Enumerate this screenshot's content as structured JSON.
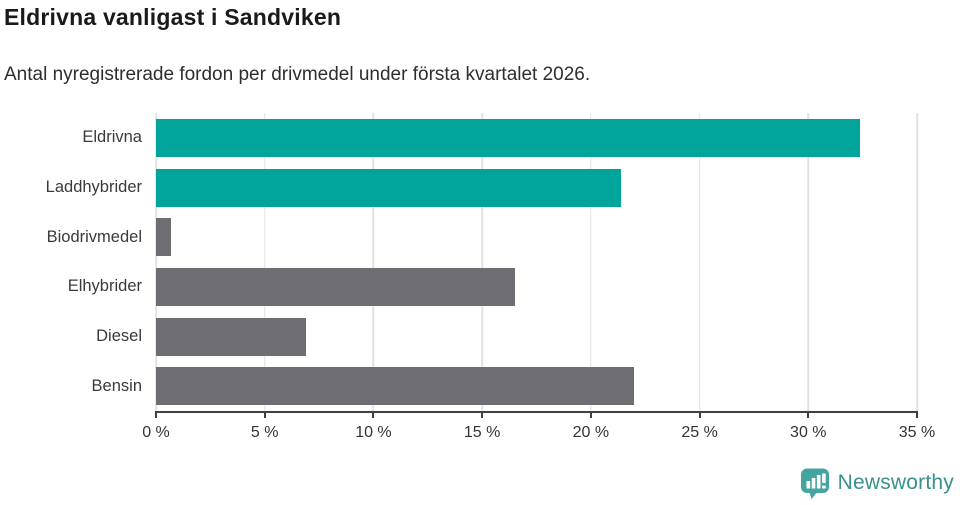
{
  "header": {
    "title": "Eldrivna vanligast i Sandviken",
    "subtitle": "Antal nyregistrerade fordon per drivmedel under första kvartalet 2026."
  },
  "chart_data": {
    "type": "bar",
    "orientation": "horizontal",
    "title": "Eldrivna vanligast i Sandviken",
    "subtitle": "Antal nyregistrerade fordon per drivmedel under första kvartalet 2026.",
    "categories": [
      "Eldrivna",
      "Laddhybrider",
      "Biodrivmedel",
      "Elhybrider",
      "Diesel",
      "Bensin"
    ],
    "values": [
      32.4,
      21.4,
      0.7,
      16.5,
      6.9,
      22.0
    ],
    "unit": "%",
    "xlim": [
      0,
      35
    ],
    "x_tick_values": [
      0,
      5,
      10,
      15,
      20,
      25,
      30,
      35
    ],
    "x_tick_labels": [
      "0 %",
      "5 %",
      "10 %",
      "15 %",
      "20 %",
      "25 %",
      "30 %",
      "35 %"
    ],
    "grid": true,
    "legend": "none",
    "bar_colors": [
      "#00a49b",
      "#00a49b",
      "#6e6e72",
      "#6e6e72",
      "#6e6e72",
      "#6e6e72"
    ],
    "colors": {
      "highlight": "#00a49b",
      "default": "#6e6e72",
      "gridline": "#e2e2e2",
      "axis": "#3f3f3f",
      "text": "#3a3a3a"
    }
  },
  "footer": {
    "brand": "Newsworthy",
    "logo_icon": "newsworthy-chart-bubble-icon",
    "logo_color": "#44a5a0",
    "text_color": "#38918d"
  }
}
